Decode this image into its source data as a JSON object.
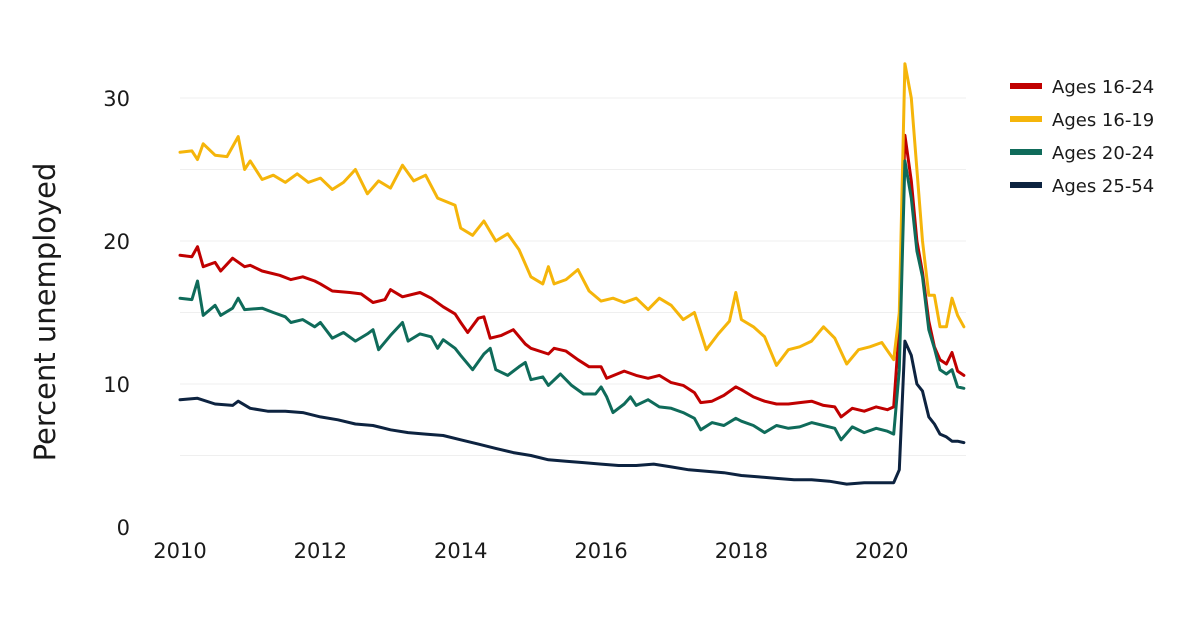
{
  "chart_data": {
    "type": "line",
    "title": "",
    "xlabel": "",
    "ylabel": "Percent unemployed",
    "xlim": [
      2010,
      2021.2
    ],
    "ylim": [
      0,
      30
    ],
    "x_ticks": [
      "2010",
      "2012",
      "2014",
      "2016",
      "2018",
      "2020"
    ],
    "y_ticks": [
      "0",
      "10",
      "20",
      "30"
    ],
    "grid": true,
    "legend_position": "top-right",
    "series": [
      {
        "name": "Ages 16-24",
        "color": "#c00000",
        "points": [
          [
            2010.0,
            19.0
          ],
          [
            2010.17,
            18.9
          ],
          [
            2010.25,
            19.6
          ],
          [
            2010.33,
            18.2
          ],
          [
            2010.5,
            18.5
          ],
          [
            2010.58,
            17.9
          ],
          [
            2010.75,
            18.8
          ],
          [
            2010.92,
            18.2
          ],
          [
            2011.0,
            18.3
          ],
          [
            2011.17,
            17.9
          ],
          [
            2011.42,
            17.6
          ],
          [
            2011.58,
            17.3
          ],
          [
            2011.75,
            17.5
          ],
          [
            2011.92,
            17.2
          ],
          [
            2012.0,
            17.0
          ],
          [
            2012.17,
            16.5
          ],
          [
            2012.42,
            16.4
          ],
          [
            2012.58,
            16.3
          ],
          [
            2012.75,
            15.7
          ],
          [
            2012.92,
            15.9
          ],
          [
            2013.0,
            16.6
          ],
          [
            2013.17,
            16.1
          ],
          [
            2013.42,
            16.4
          ],
          [
            2013.58,
            16.0
          ],
          [
            2013.75,
            15.4
          ],
          [
            2013.92,
            14.9
          ],
          [
            2014.0,
            14.3
          ],
          [
            2014.1,
            13.6
          ],
          [
            2014.25,
            14.6
          ],
          [
            2014.33,
            14.7
          ],
          [
            2014.42,
            13.2
          ],
          [
            2014.58,
            13.4
          ],
          [
            2014.75,
            13.8
          ],
          [
            2014.92,
            12.8
          ],
          [
            2015.0,
            12.5
          ],
          [
            2015.25,
            12.1
          ],
          [
            2015.33,
            12.5
          ],
          [
            2015.5,
            12.3
          ],
          [
            2015.67,
            11.7
          ],
          [
            2015.83,
            11.2
          ],
          [
            2016.0,
            11.2
          ],
          [
            2016.08,
            10.4
          ],
          [
            2016.33,
            10.9
          ],
          [
            2016.5,
            10.6
          ],
          [
            2016.67,
            10.4
          ],
          [
            2016.83,
            10.6
          ],
          [
            2017.0,
            10.1
          ],
          [
            2017.17,
            9.9
          ],
          [
            2017.33,
            9.4
          ],
          [
            2017.42,
            8.7
          ],
          [
            2017.58,
            8.8
          ],
          [
            2017.75,
            9.2
          ],
          [
            2017.92,
            9.8
          ],
          [
            2018.0,
            9.6
          ],
          [
            2018.17,
            9.1
          ],
          [
            2018.33,
            8.8
          ],
          [
            2018.5,
            8.6
          ],
          [
            2018.67,
            8.6
          ],
          [
            2018.83,
            8.7
          ],
          [
            2019.0,
            8.8
          ],
          [
            2019.17,
            8.5
          ],
          [
            2019.33,
            8.4
          ],
          [
            2019.42,
            7.7
          ],
          [
            2019.58,
            8.3
          ],
          [
            2019.75,
            8.1
          ],
          [
            2019.92,
            8.4
          ],
          [
            2020.08,
            8.2
          ],
          [
            2020.17,
            8.4
          ],
          [
            2020.25,
            14.0
          ],
          [
            2020.33,
            27.4
          ],
          [
            2020.42,
            24.2
          ],
          [
            2020.5,
            20.0
          ],
          [
            2020.58,
            17.8
          ],
          [
            2020.67,
            14.4
          ],
          [
            2020.75,
            12.6
          ],
          [
            2020.83,
            11.7
          ],
          [
            2020.92,
            11.4
          ],
          [
            2021.0,
            12.2
          ],
          [
            2021.08,
            10.9
          ],
          [
            2021.17,
            10.6
          ]
        ]
      },
      {
        "name": "Ages 16-19",
        "color": "#f5b50a",
        "points": [
          [
            2010.0,
            26.2
          ],
          [
            2010.17,
            26.3
          ],
          [
            2010.25,
            25.7
          ],
          [
            2010.33,
            26.8
          ],
          [
            2010.5,
            26.0
          ],
          [
            2010.67,
            25.9
          ],
          [
            2010.83,
            27.3
          ],
          [
            2010.92,
            25.0
          ],
          [
            2011.0,
            25.6
          ],
          [
            2011.17,
            24.3
          ],
          [
            2011.33,
            24.6
          ],
          [
            2011.5,
            24.1
          ],
          [
            2011.67,
            24.7
          ],
          [
            2011.83,
            24.1
          ],
          [
            2012.0,
            24.4
          ],
          [
            2012.17,
            23.6
          ],
          [
            2012.33,
            24.1
          ],
          [
            2012.5,
            25.0
          ],
          [
            2012.67,
            23.3
          ],
          [
            2012.83,
            24.2
          ],
          [
            2013.0,
            23.7
          ],
          [
            2013.17,
            25.3
          ],
          [
            2013.33,
            24.2
          ],
          [
            2013.5,
            24.6
          ],
          [
            2013.67,
            23.0
          ],
          [
            2013.92,
            22.5
          ],
          [
            2014.0,
            20.9
          ],
          [
            2014.17,
            20.4
          ],
          [
            2014.33,
            21.4
          ],
          [
            2014.5,
            20.0
          ],
          [
            2014.67,
            20.5
          ],
          [
            2014.83,
            19.4
          ],
          [
            2015.0,
            17.5
          ],
          [
            2015.17,
            17.0
          ],
          [
            2015.25,
            18.2
          ],
          [
            2015.33,
            17.0
          ],
          [
            2015.5,
            17.3
          ],
          [
            2015.67,
            18.0
          ],
          [
            2015.83,
            16.5
          ],
          [
            2016.0,
            15.8
          ],
          [
            2016.17,
            16.0
          ],
          [
            2016.33,
            15.7
          ],
          [
            2016.5,
            16.0
          ],
          [
            2016.67,
            15.2
          ],
          [
            2016.83,
            16.0
          ],
          [
            2017.0,
            15.5
          ],
          [
            2017.17,
            14.5
          ],
          [
            2017.33,
            15.0
          ],
          [
            2017.5,
            12.4
          ],
          [
            2017.67,
            13.5
          ],
          [
            2017.83,
            14.4
          ],
          [
            2017.92,
            16.4
          ],
          [
            2018.0,
            14.5
          ],
          [
            2018.17,
            14.0
          ],
          [
            2018.33,
            13.3
          ],
          [
            2018.5,
            11.3
          ],
          [
            2018.67,
            12.4
          ],
          [
            2018.83,
            12.6
          ],
          [
            2019.0,
            13.0
          ],
          [
            2019.17,
            14.0
          ],
          [
            2019.33,
            13.2
          ],
          [
            2019.5,
            11.4
          ],
          [
            2019.67,
            12.4
          ],
          [
            2019.83,
            12.6
          ],
          [
            2020.0,
            12.9
          ],
          [
            2020.17,
            11.7
          ],
          [
            2020.25,
            15.0
          ],
          [
            2020.33,
            32.4
          ],
          [
            2020.42,
            30.0
          ],
          [
            2020.5,
            25.0
          ],
          [
            2020.58,
            20.0
          ],
          [
            2020.67,
            16.2
          ],
          [
            2020.75,
            16.2
          ],
          [
            2020.83,
            14.0
          ],
          [
            2020.92,
            14.0
          ],
          [
            2021.0,
            16.0
          ],
          [
            2021.08,
            14.8
          ],
          [
            2021.17,
            14.0
          ]
        ]
      },
      {
        "name": "Ages 20-24",
        "color": "#0f6b5a",
        "points": [
          [
            2010.0,
            16.0
          ],
          [
            2010.17,
            15.9
          ],
          [
            2010.25,
            17.2
          ],
          [
            2010.33,
            14.8
          ],
          [
            2010.5,
            15.5
          ],
          [
            2010.58,
            14.8
          ],
          [
            2010.75,
            15.3
          ],
          [
            2010.83,
            16.0
          ],
          [
            2010.92,
            15.2
          ],
          [
            2011.17,
            15.3
          ],
          [
            2011.33,
            15.0
          ],
          [
            2011.5,
            14.7
          ],
          [
            2011.58,
            14.3
          ],
          [
            2011.75,
            14.5
          ],
          [
            2011.92,
            14.0
          ],
          [
            2012.0,
            14.3
          ],
          [
            2012.17,
            13.2
          ],
          [
            2012.33,
            13.6
          ],
          [
            2012.5,
            13.0
          ],
          [
            2012.67,
            13.5
          ],
          [
            2012.75,
            13.8
          ],
          [
            2012.83,
            12.4
          ],
          [
            2013.0,
            13.4
          ],
          [
            2013.17,
            14.3
          ],
          [
            2013.25,
            13.0
          ],
          [
            2013.42,
            13.5
          ],
          [
            2013.58,
            13.3
          ],
          [
            2013.67,
            12.5
          ],
          [
            2013.75,
            13.1
          ],
          [
            2013.92,
            12.5
          ],
          [
            2014.0,
            12.0
          ],
          [
            2014.17,
            11.0
          ],
          [
            2014.33,
            12.1
          ],
          [
            2014.42,
            12.5
          ],
          [
            2014.5,
            11.0
          ],
          [
            2014.67,
            10.6
          ],
          [
            2014.83,
            11.2
          ],
          [
            2014.92,
            11.5
          ],
          [
            2015.0,
            10.3
          ],
          [
            2015.17,
            10.5
          ],
          [
            2015.25,
            9.9
          ],
          [
            2015.42,
            10.7
          ],
          [
            2015.58,
            9.9
          ],
          [
            2015.75,
            9.3
          ],
          [
            2015.92,
            9.3
          ],
          [
            2016.0,
            9.8
          ],
          [
            2016.08,
            9.1
          ],
          [
            2016.17,
            8.0
          ],
          [
            2016.33,
            8.6
          ],
          [
            2016.42,
            9.1
          ],
          [
            2016.5,
            8.5
          ],
          [
            2016.67,
            8.9
          ],
          [
            2016.83,
            8.4
          ],
          [
            2017.0,
            8.3
          ],
          [
            2017.17,
            8.0
          ],
          [
            2017.33,
            7.6
          ],
          [
            2017.42,
            6.8
          ],
          [
            2017.58,
            7.3
          ],
          [
            2017.75,
            7.1
          ],
          [
            2017.92,
            7.6
          ],
          [
            2018.0,
            7.4
          ],
          [
            2018.17,
            7.1
          ],
          [
            2018.33,
            6.6
          ],
          [
            2018.5,
            7.1
          ],
          [
            2018.67,
            6.9
          ],
          [
            2018.83,
            7.0
          ],
          [
            2019.0,
            7.3
          ],
          [
            2019.17,
            7.1
          ],
          [
            2019.33,
            6.9
          ],
          [
            2019.42,
            6.1
          ],
          [
            2019.58,
            7.0
          ],
          [
            2019.75,
            6.6
          ],
          [
            2019.92,
            6.9
          ],
          [
            2020.08,
            6.7
          ],
          [
            2020.17,
            6.5
          ],
          [
            2020.25,
            11.0
          ],
          [
            2020.33,
            25.6
          ],
          [
            2020.42,
            23.0
          ],
          [
            2020.5,
            19.3
          ],
          [
            2020.58,
            17.5
          ],
          [
            2020.67,
            13.8
          ],
          [
            2020.75,
            12.5
          ],
          [
            2020.83,
            11.0
          ],
          [
            2020.92,
            10.7
          ],
          [
            2021.0,
            11.0
          ],
          [
            2021.08,
            9.8
          ],
          [
            2021.17,
            9.7
          ]
        ]
      },
      {
        "name": "Ages 25-54",
        "color": "#0d2340",
        "points": [
          [
            2010.0,
            8.9
          ],
          [
            2010.25,
            9.0
          ],
          [
            2010.5,
            8.6
          ],
          [
            2010.75,
            8.5
          ],
          [
            2010.83,
            8.8
          ],
          [
            2011.0,
            8.3
          ],
          [
            2011.25,
            8.1
          ],
          [
            2011.5,
            8.1
          ],
          [
            2011.75,
            8.0
          ],
          [
            2012.0,
            7.7
          ],
          [
            2012.25,
            7.5
          ],
          [
            2012.5,
            7.2
          ],
          [
            2012.75,
            7.1
          ],
          [
            2013.0,
            6.8
          ],
          [
            2013.25,
            6.6
          ],
          [
            2013.5,
            6.5
          ],
          [
            2013.75,
            6.4
          ],
          [
            2014.0,
            6.1
          ],
          [
            2014.25,
            5.8
          ],
          [
            2014.5,
            5.5
          ],
          [
            2014.75,
            5.2
          ],
          [
            2015.0,
            5.0
          ],
          [
            2015.25,
            4.7
          ],
          [
            2015.5,
            4.6
          ],
          [
            2015.75,
            4.5
          ],
          [
            2016.0,
            4.4
          ],
          [
            2016.25,
            4.3
          ],
          [
            2016.5,
            4.3
          ],
          [
            2016.75,
            4.4
          ],
          [
            2017.0,
            4.2
          ],
          [
            2017.25,
            4.0
          ],
          [
            2017.5,
            3.9
          ],
          [
            2017.75,
            3.8
          ],
          [
            2018.0,
            3.6
          ],
          [
            2018.25,
            3.5
          ],
          [
            2018.5,
            3.4
          ],
          [
            2018.75,
            3.3
          ],
          [
            2019.0,
            3.3
          ],
          [
            2019.25,
            3.2
          ],
          [
            2019.5,
            3.0
          ],
          [
            2019.75,
            3.1
          ],
          [
            2020.0,
            3.1
          ],
          [
            2020.17,
            3.1
          ],
          [
            2020.25,
            4.0
          ],
          [
            2020.33,
            13.0
          ],
          [
            2020.42,
            12.0
          ],
          [
            2020.5,
            10.0
          ],
          [
            2020.58,
            9.5
          ],
          [
            2020.67,
            7.7
          ],
          [
            2020.75,
            7.2
          ],
          [
            2020.83,
            6.5
          ],
          [
            2020.92,
            6.3
          ],
          [
            2021.0,
            6.0
          ],
          [
            2021.08,
            6.0
          ],
          [
            2021.17,
            5.9
          ]
        ]
      }
    ]
  }
}
